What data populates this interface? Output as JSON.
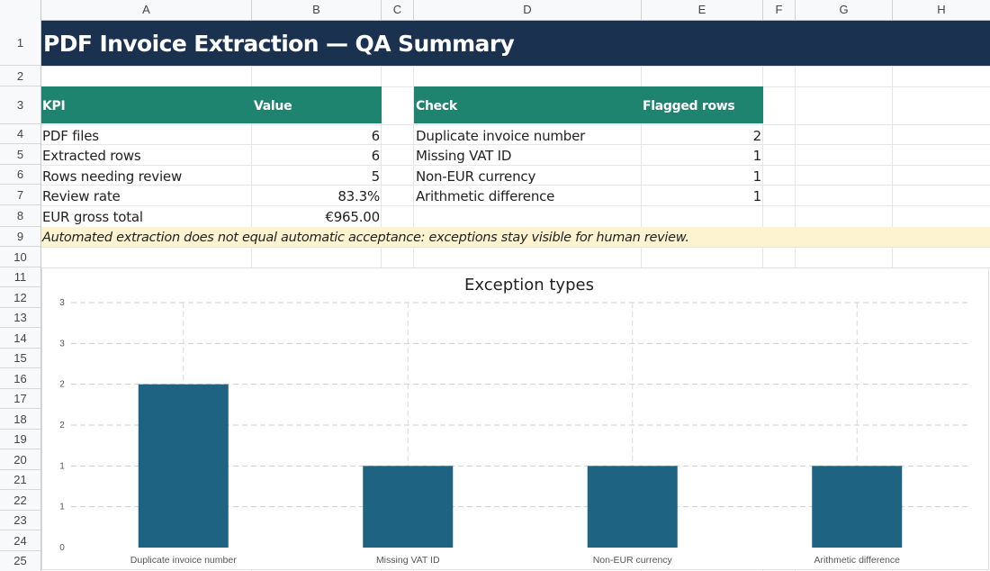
{
  "columns": [
    "A",
    "B",
    "C",
    "D",
    "E",
    "F",
    "G",
    "H"
  ],
  "rows": [
    "1",
    "2",
    "3",
    "4",
    "5",
    "6",
    "7",
    "8",
    "9",
    "10",
    "11",
    "12",
    "13",
    "14",
    "15",
    "16",
    "17",
    "18",
    "19",
    "20",
    "21",
    "22",
    "23",
    "24",
    "25"
  ],
  "title": "PDF Invoice Extraction — QA Summary",
  "kpi_table": {
    "header_label": "KPI",
    "header_value": "Value",
    "rows": [
      {
        "label": "PDF files",
        "value": "6"
      },
      {
        "label": "Extracted rows",
        "value": "6"
      },
      {
        "label": "Rows needing review",
        "value": "5"
      },
      {
        "label": "Review rate",
        "value": "83.3%"
      },
      {
        "label": "EUR gross total",
        "value": "€965.00"
      }
    ]
  },
  "check_table": {
    "header_label": "Check",
    "header_value": "Flagged rows",
    "rows": [
      {
        "label": "Duplicate invoice number",
        "value": "2"
      },
      {
        "label": "Missing VAT ID",
        "value": "1"
      },
      {
        "label": "Non-EUR currency",
        "value": "1"
      },
      {
        "label": "Arithmetic difference",
        "value": "1"
      }
    ]
  },
  "note": "Automated extraction does not equal automatic acceptance: exceptions stay visible for human review.",
  "colors": {
    "title_bg": "#1b3150",
    "header_bg": "#1e8470",
    "note_bg": "#fdf3d0",
    "bar": "#1e6482"
  },
  "chart_data": {
    "type": "bar",
    "title": "Exception types",
    "categories": [
      "Duplicate invoice number",
      "Missing VAT ID",
      "Non-EUR currency",
      "Arithmetic difference"
    ],
    "values": [
      2,
      1,
      1,
      1
    ],
    "ylim": [
      0,
      3
    ],
    "y_tick_values": [
      0,
      0.5,
      1,
      1.5,
      2,
      2.5,
      3
    ],
    "y_tick_labels": [
      "0",
      "1",
      "1",
      "2",
      "2",
      "3",
      "3"
    ],
    "grid": true,
    "legend": "none"
  }
}
